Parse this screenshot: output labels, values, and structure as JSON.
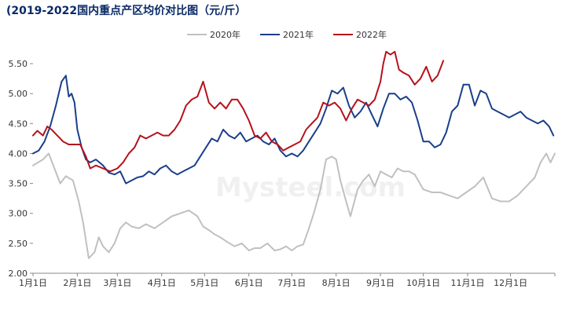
{
  "chart_data": {
    "type": "line",
    "title": "(2019-2022国内重点产区均价对比图（元/斤）",
    "xlabel": "",
    "ylabel": "",
    "ylim": [
      2.0,
      5.75
    ],
    "y_ticks": [
      "2.00",
      "2.50",
      "3.00",
      "3.50",
      "4.00",
      "4.50",
      "5.00",
      "5.50"
    ],
    "x_ticks": [
      "1月1日",
      "2月1日",
      "3月1日",
      "4月1日",
      "5月1日",
      "6月1日",
      "7月1日",
      "8月1日",
      "9月1日",
      "10月1日",
      "11月1日",
      "12月1日"
    ],
    "x_tick_doy": [
      1,
      32,
      60,
      91,
      121,
      152,
      182,
      213,
      244,
      274,
      305,
      335
    ],
    "x_range": [
      1,
      366
    ],
    "grid": false,
    "legend_position": "top",
    "watermark": "Mysteel.com",
    "series": [
      {
        "name": "2020年",
        "color": "#c0c0c0",
        "x": [
          1,
          8,
          12,
          16,
          20,
          24,
          29,
          33,
          36,
          38,
          40,
          44,
          47,
          50,
          54,
          58,
          62,
          66,
          70,
          75,
          80,
          86,
          92,
          98,
          104,
          110,
          116,
          120,
          124,
          128,
          132,
          137,
          142,
          147,
          152,
          156,
          160,
          165,
          170,
          174,
          178,
          182,
          186,
          190,
          194,
          198,
          202,
          206,
          210,
          213,
          216,
          220,
          223,
          228,
          232,
          236,
          240,
          244,
          248,
          252,
          256,
          260,
          264,
          268,
          274,
          280,
          286,
          292,
          298,
          304,
          310,
          316,
          322,
          328,
          334,
          340,
          346,
          352,
          356,
          360,
          363,
          366
        ],
        "values": [
          3.8,
          3.9,
          4.0,
          3.75,
          3.5,
          3.62,
          3.55,
          3.2,
          2.85,
          2.55,
          2.25,
          2.35,
          2.6,
          2.45,
          2.35,
          2.5,
          2.75,
          2.85,
          2.78,
          2.75,
          2.82,
          2.75,
          2.85,
          2.95,
          3.0,
          3.05,
          2.95,
          2.78,
          2.72,
          2.65,
          2.6,
          2.52,
          2.45,
          2.5,
          2.38,
          2.42,
          2.42,
          2.5,
          2.38,
          2.4,
          2.45,
          2.38,
          2.45,
          2.48,
          2.75,
          3.05,
          3.4,
          3.9,
          3.95,
          3.9,
          3.55,
          3.2,
          2.95,
          3.4,
          3.55,
          3.65,
          3.45,
          3.7,
          3.65,
          3.6,
          3.75,
          3.7,
          3.7,
          3.65,
          3.4,
          3.35,
          3.35,
          3.3,
          3.25,
          3.35,
          3.45,
          3.6,
          3.25,
          3.2,
          3.2,
          3.3,
          3.45,
          3.6,
          3.85,
          4.0,
          3.85,
          4.0
        ]
      },
      {
        "name": "2021年",
        "color": "#1a3f8a",
        "x": [
          1,
          5,
          9,
          13,
          17,
          21,
          24,
          26,
          28,
          30,
          32,
          35,
          38,
          41,
          45,
          50,
          54,
          58,
          62,
          66,
          70,
          74,
          78,
          82,
          86,
          90,
          94,
          98,
          102,
          106,
          110,
          114,
          118,
          122,
          126,
          130,
          134,
          138,
          142,
          146,
          150,
          154,
          158,
          162,
          166,
          170,
          174,
          178,
          182,
          186,
          190,
          194,
          198,
          202,
          206,
          210,
          214,
          218,
          222,
          226,
          230,
          234,
          238,
          242,
          246,
          250,
          254,
          258,
          262,
          266,
          270,
          274,
          278,
          282,
          286,
          290,
          294,
          298,
          302,
          306,
          310,
          314,
          318,
          322,
          326,
          330,
          334,
          338,
          342,
          346,
          350,
          354,
          358,
          362,
          365
        ],
        "values": [
          4.0,
          4.05,
          4.2,
          4.45,
          4.8,
          5.2,
          5.3,
          4.95,
          5.0,
          4.85,
          4.4,
          4.1,
          3.9,
          3.85,
          3.9,
          3.8,
          3.68,
          3.65,
          3.7,
          3.5,
          3.55,
          3.6,
          3.62,
          3.7,
          3.65,
          3.75,
          3.8,
          3.7,
          3.65,
          3.7,
          3.75,
          3.8,
          3.95,
          4.1,
          4.25,
          4.2,
          4.4,
          4.3,
          4.25,
          4.35,
          4.2,
          4.25,
          4.3,
          4.2,
          4.15,
          4.25,
          4.05,
          3.95,
          4.0,
          3.95,
          4.05,
          4.2,
          4.35,
          4.5,
          4.75,
          5.05,
          5.0,
          5.1,
          4.8,
          4.6,
          4.7,
          4.85,
          4.65,
          4.45,
          4.75,
          5.0,
          5.0,
          4.9,
          4.95,
          4.85,
          4.55,
          4.2,
          4.2,
          4.1,
          4.15,
          4.35,
          4.7,
          4.8,
          5.15,
          5.15,
          4.8,
          5.05,
          5.0,
          4.75,
          4.7,
          4.65,
          4.6,
          4.65,
          4.7,
          4.6,
          4.55,
          4.5,
          4.55,
          4.45,
          4.3
        ]
      },
      {
        "name": "2022年",
        "color": "#b5121b",
        "x": [
          1,
          4,
          8,
          11,
          14,
          18,
          22,
          26,
          30,
          34,
          38,
          41,
          45,
          50,
          55,
          60,
          64,
          68,
          72,
          76,
          80,
          84,
          88,
          92,
          96,
          100,
          104,
          108,
          112,
          116,
          120,
          124,
          128,
          132,
          136,
          140,
          144,
          148,
          152,
          156,
          160,
          164,
          168,
          172,
          176,
          180,
          184,
          188,
          192,
          196,
          200,
          204,
          208,
          212,
          216,
          220,
          224,
          228,
          232,
          236,
          240,
          244,
          246,
          248,
          251,
          254,
          257,
          260,
          264,
          268,
          272,
          276,
          280,
          284,
          288
        ],
        "values": [
          4.3,
          4.38,
          4.3,
          4.45,
          4.4,
          4.3,
          4.2,
          4.15,
          4.15,
          4.15,
          3.95,
          3.75,
          3.8,
          3.75,
          3.7,
          3.75,
          3.85,
          4.0,
          4.1,
          4.3,
          4.25,
          4.3,
          4.35,
          4.3,
          4.3,
          4.4,
          4.55,
          4.8,
          4.9,
          4.95,
          5.2,
          4.85,
          4.75,
          4.85,
          4.75,
          4.9,
          4.9,
          4.75,
          4.55,
          4.3,
          4.25,
          4.35,
          4.2,
          4.15,
          4.05,
          4.1,
          4.15,
          4.2,
          4.4,
          4.5,
          4.6,
          4.85,
          4.8,
          4.85,
          4.75,
          4.55,
          4.75,
          4.9,
          4.85,
          4.8,
          4.9,
          5.2,
          5.5,
          5.7,
          5.65,
          5.7,
          5.4,
          5.35,
          5.3,
          5.15,
          5.25,
          5.45,
          5.2,
          5.3,
          5.55
        ]
      }
    ]
  }
}
